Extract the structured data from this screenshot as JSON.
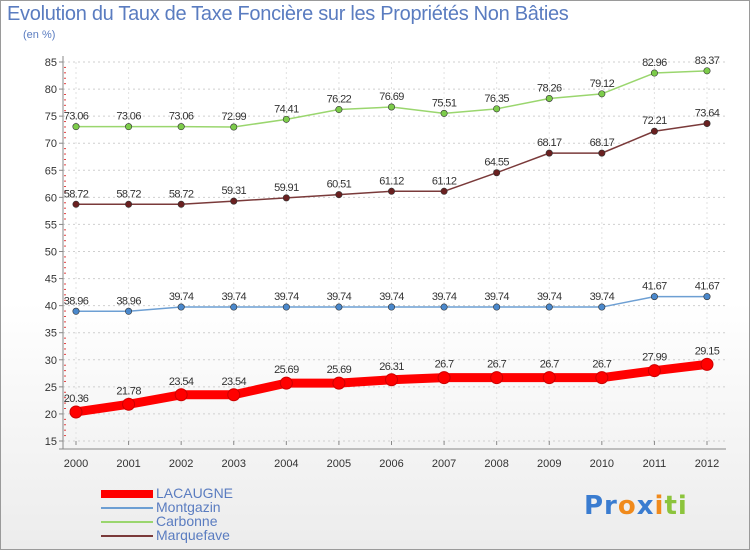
{
  "title": "Evolution du Taux de Taxe Foncière sur les Propriétés Non Bâties",
  "unit": "(en %)",
  "logo": {
    "parts": [
      "Pr",
      "o",
      "x",
      "i",
      "ti"
    ],
    "colors": [
      "#3a7cd0",
      "#f08a1c",
      "#3a7cd0",
      "#f08a1c",
      "#8cc43c"
    ]
  },
  "chart_data": {
    "type": "line",
    "title": "Evolution du Taux de Taxe Foncière sur les Propriétés Non Bâties",
    "ylabel": "(en %)",
    "xlabel": "",
    "ylim": [
      15,
      85
    ],
    "yticks": [
      15,
      20,
      25,
      30,
      35,
      40,
      45,
      50,
      55,
      60,
      65,
      70,
      75,
      80,
      85
    ],
    "x": [
      "2000",
      "2001",
      "2002",
      "2003",
      "2004",
      "2005",
      "2006",
      "2007",
      "2008",
      "2009",
      "2010",
      "2011",
      "2012"
    ],
    "grid": "horizontal dashed",
    "legend": "bottom-left",
    "series": [
      {
        "name": "LACAUGNE",
        "color": "#ff0000",
        "main": true,
        "values": [
          20.36,
          21.78,
          23.54,
          23.54,
          25.69,
          25.69,
          26.31,
          26.7,
          26.7,
          26.7,
          26.7,
          27.99,
          29.15
        ],
        "labels": [
          "20.36",
          "21.78",
          "23.54",
          "23.54",
          "25.69",
          "25.69",
          "26.31",
          "26.7",
          "26.7",
          "26.7",
          "26.7",
          "27.99",
          "29.15"
        ]
      },
      {
        "name": "Montgazin",
        "color": "#6d9fd3",
        "marker": "#4a88cc",
        "values": [
          38.96,
          38.96,
          39.74,
          39.74,
          39.74,
          39.74,
          39.74,
          39.74,
          39.74,
          39.74,
          39.74,
          41.67,
          41.67
        ],
        "labels": [
          "38.96",
          "38.96",
          "39.74",
          "39.74",
          "39.74",
          "39.74",
          "39.74",
          "39.74",
          "39.74",
          "39.74",
          "39.74",
          "41.67",
          "41.67"
        ]
      },
      {
        "name": "Carbonne",
        "color": "#9ad66e",
        "marker": "#7ccc4a",
        "values": [
          73.06,
          73.06,
          73.06,
          72.99,
          74.41,
          76.22,
          76.69,
          75.51,
          76.35,
          78.26,
          79.12,
          82.96,
          83.37
        ],
        "labels": [
          "73.06",
          "73.06",
          "73.06",
          "72.99",
          "74.41",
          "76.22",
          "76.69",
          "75.51",
          "76.35",
          "78.26",
          "79.12",
          "82.96",
          "83.37"
        ]
      },
      {
        "name": "Marquefave",
        "color": "#7a3a3a",
        "marker": "#6a2020",
        "values": [
          58.72,
          58.72,
          58.72,
          59.31,
          59.91,
          60.51,
          61.12,
          61.12,
          64.55,
          68.17,
          68.17,
          72.21,
          73.64
        ],
        "labels": [
          "58.72",
          "58.72",
          "58.72",
          "59.31",
          "59.91",
          "60.51",
          "61.12",
          "61.12",
          "64.55",
          "68.17",
          "68.17",
          "72.21",
          "73.64"
        ]
      }
    ]
  }
}
